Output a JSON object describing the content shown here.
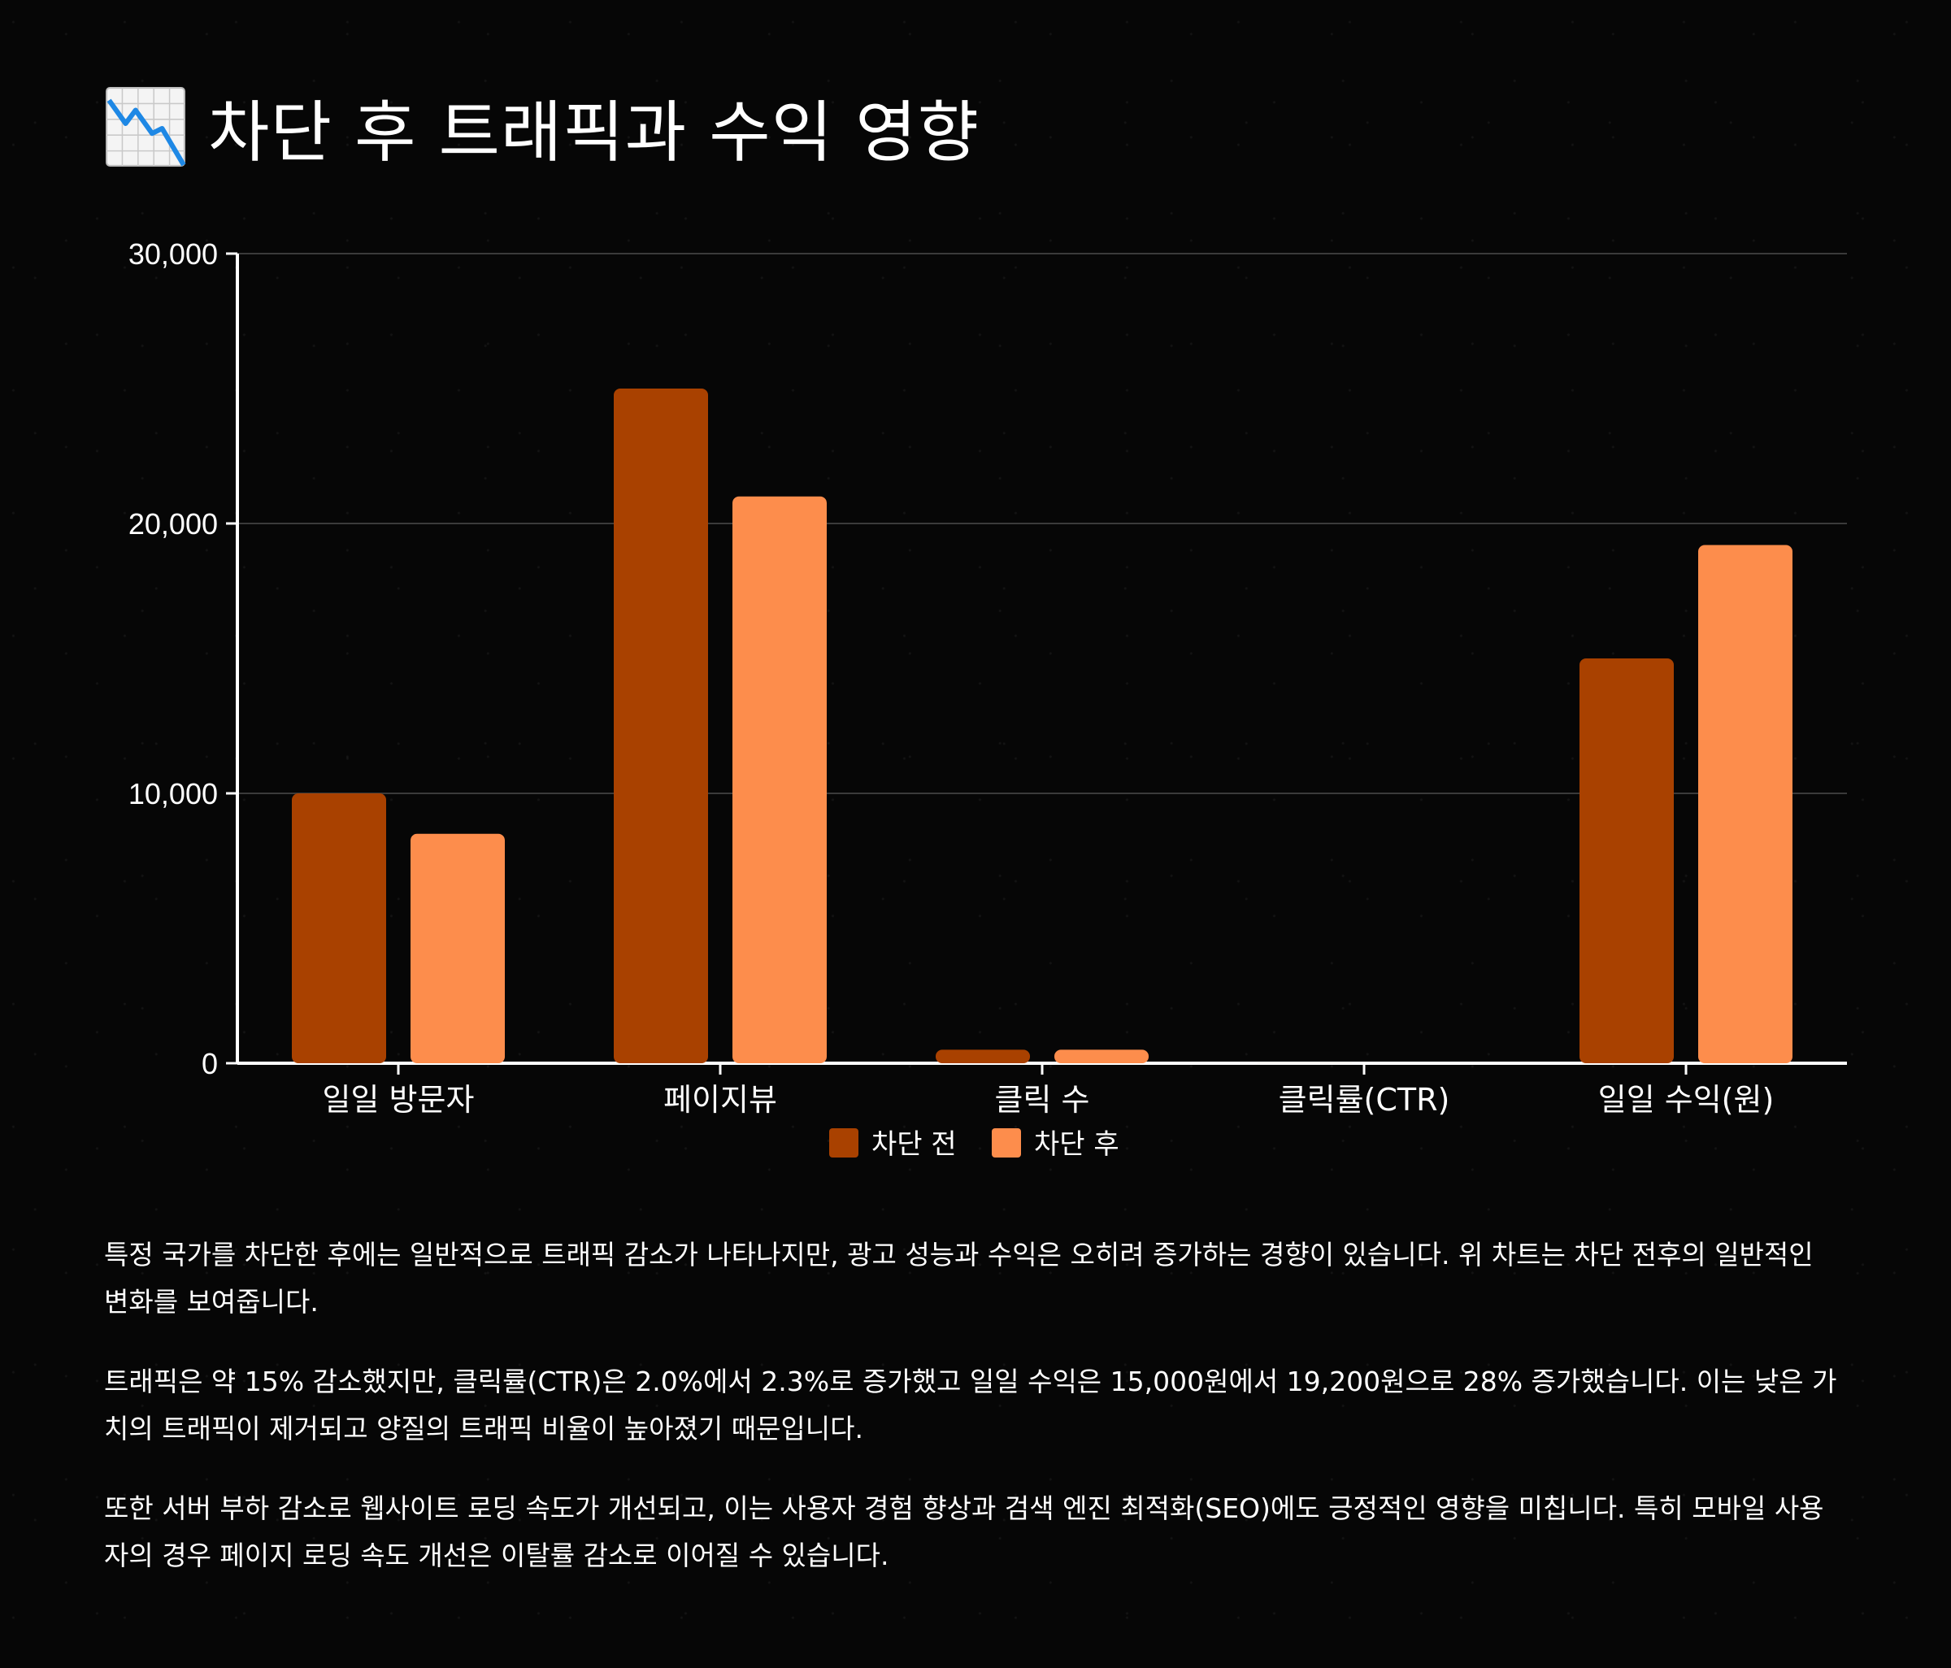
{
  "page": {
    "title": "차단 후 트래픽과 수익 영향",
    "title_icon": "chart-decreasing-icon"
  },
  "colors": {
    "before": "#a94100",
    "after": "#fd8d4c",
    "background": "#060606",
    "text": "#ffffff",
    "grid": "#3a3a3a"
  },
  "chart_data": {
    "type": "bar",
    "title": "",
    "xlabel": "",
    "ylabel": "",
    "categories": [
      "일일 방문자",
      "페이지뷰",
      "클릭 수",
      "클릭률(CTR)",
      "일일 수익(원)"
    ],
    "series": [
      {
        "name": "차단 전",
        "values": [
          10000,
          25000,
          500,
          2.0,
          15000
        ]
      },
      {
        "name": "차단 후",
        "values": [
          8500,
          21000,
          500,
          2.3,
          19200
        ]
      }
    ],
    "ylim": [
      0,
      30000
    ],
    "yticks": [
      0,
      10000,
      20000,
      30000
    ],
    "ytick_labels": [
      "0",
      "10,000",
      "20,000",
      "30,000"
    ],
    "grid": true,
    "legend_position": "bottom-center"
  },
  "paragraphs": [
    "특정 국가를 차단한 후에는 일반적으로 트래픽 감소가 나타나지만, 광고 성능과 수익은 오히려 증가하는 경향이 있습니다. 위 차트는 차단 전후의 일반적인 변화를 보여줍니다.",
    "트래픽은 약 15% 감소했지만, 클릭률(CTR)은 2.0%에서 2.3%로 증가했고 일일 수익은 15,000원에서 19,200원으로 28% 증가했습니다. 이는 낮은 가치의 트래픽이 제거되고 양질의 트래픽 비율이 높아졌기 때문입니다.",
    "또한 서버 부하 감소로 웹사이트 로딩 속도가 개선되고, 이는 사용자 경험 향상과 검색 엔진 최적화(SEO)에도 긍정적인 영향을 미칩니다. 특히 모바일 사용자의 경우 페이지 로딩 속도 개선은 이탈률 감소로 이어질 수 있습니다."
  ]
}
